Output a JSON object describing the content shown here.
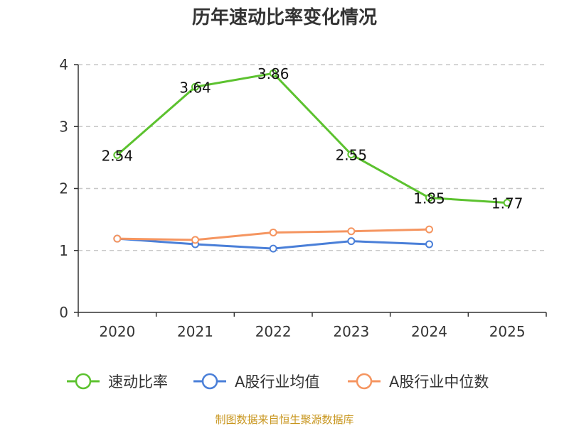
{
  "chart_data": {
    "type": "line",
    "title": "历年速动比率变化情况",
    "categories": [
      "2020",
      "2021",
      "2022",
      "2023",
      "2024",
      "2025"
    ],
    "ylim": [
      0,
      4
    ],
    "yticks": [
      0,
      1,
      2,
      3,
      4
    ],
    "grid": true,
    "series": [
      {
        "name": "速动比率",
        "color": "#5cc22f",
        "values": [
          2.54,
          3.64,
          3.86,
          2.55,
          1.85,
          1.77
        ],
        "show_labels": true
      },
      {
        "name": "A股行业均值",
        "color": "#4a7fd8",
        "values": [
          1.19,
          1.1,
          1.03,
          1.15,
          1.1,
          null
        ],
        "show_labels": false
      },
      {
        "name": "A股行业中位数",
        "color": "#f59560",
        "values": [
          1.19,
          1.17,
          1.29,
          1.31,
          1.34,
          null
        ],
        "show_labels": false
      }
    ],
    "legend_position": "bottom"
  },
  "source_text": "制图数据来自恒生聚源数据库",
  "source_color": "#c8961e"
}
